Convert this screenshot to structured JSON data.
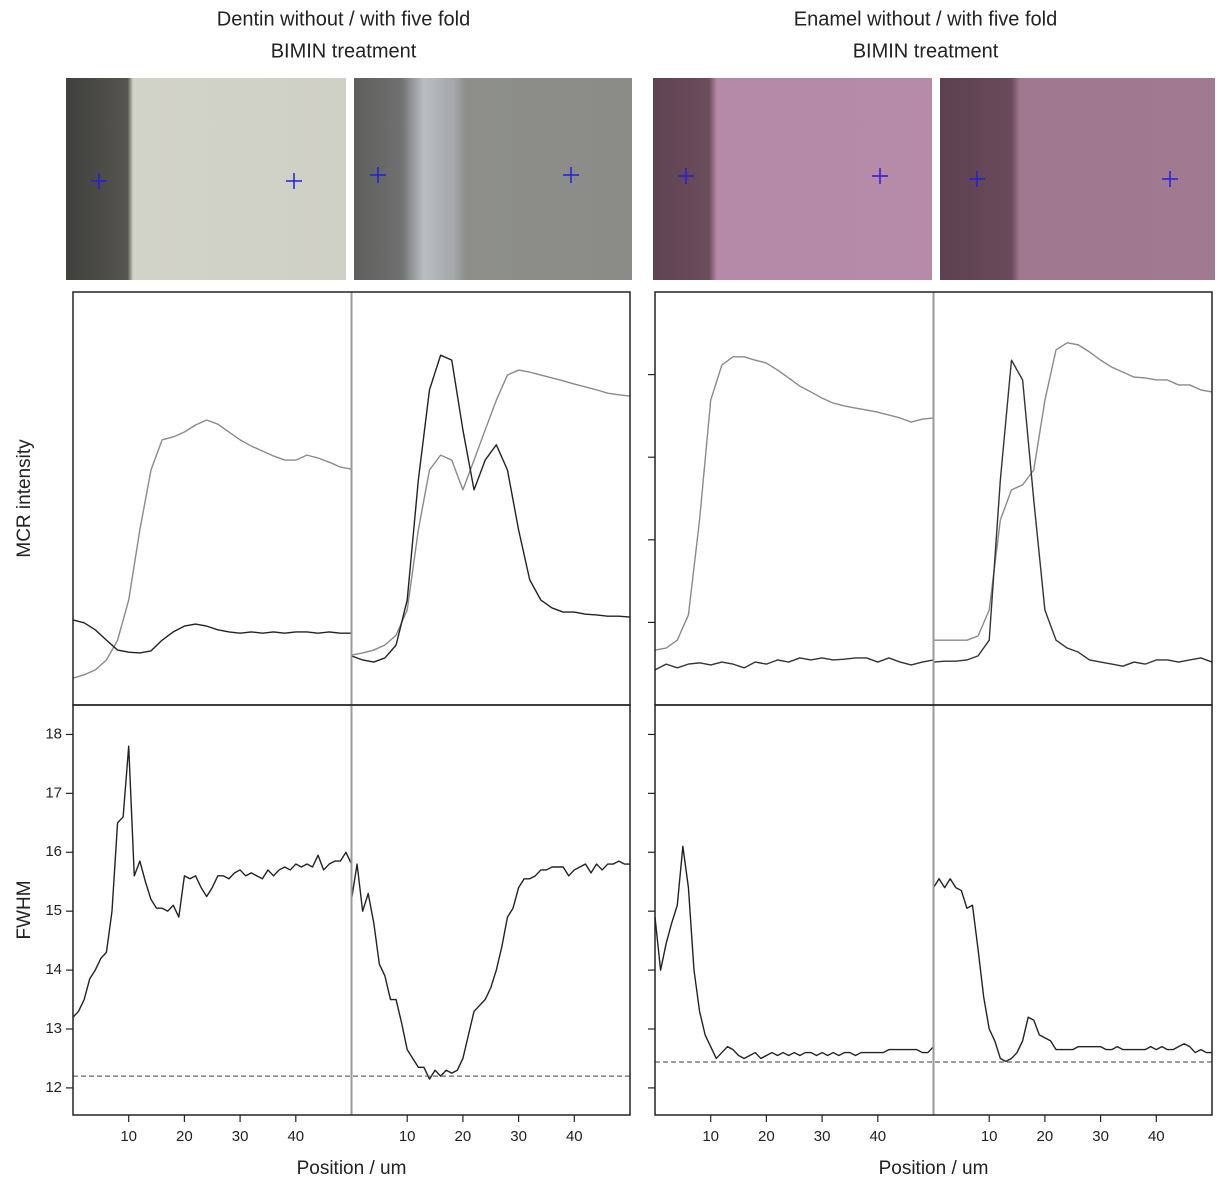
{
  "chart_data": [
    {
      "type": "line",
      "title": "Dentin without / with five fold",
      "subtitle": "BIMIN treatment",
      "ylabel": "MCR intensity",
      "ylim": [
        0,
        1
      ],
      "xlim": [
        0,
        50
      ],
      "x": [
        0,
        2,
        4,
        6,
        8,
        10,
        12,
        14,
        16,
        18,
        20,
        22,
        24,
        26,
        28,
        30,
        32,
        34,
        36,
        38,
        40,
        42,
        44,
        46,
        48,
        50
      ],
      "panels": [
        {
          "series": [
            {
              "color": "#8a8a8a",
              "values": [
                0.065,
                0.073,
                0.085,
                0.109,
                0.157,
                0.254,
                0.424,
                0.569,
                0.642,
                0.649,
                0.661,
                0.678,
                0.69,
                0.68,
                0.661,
                0.642,
                0.627,
                0.615,
                0.603,
                0.593,
                0.593,
                0.605,
                0.598,
                0.588,
                0.576,
                0.571
              ]
            },
            {
              "color": "#222222",
              "values": [
                0.206,
                0.199,
                0.182,
                0.157,
                0.133,
                0.128,
                0.126,
                0.131,
                0.157,
                0.177,
                0.191,
                0.196,
                0.191,
                0.182,
                0.177,
                0.174,
                0.177,
                0.174,
                0.177,
                0.174,
                0.177,
                0.177,
                0.174,
                0.177,
                0.174,
                0.174
              ]
            }
          ]
        },
        {
          "series": [
            {
              "color": "#8a8a8a",
              "values": [
                0.121,
                0.126,
                0.133,
                0.145,
                0.169,
                0.23,
                0.424,
                0.569,
                0.605,
                0.593,
                0.521,
                0.593,
                0.666,
                0.738,
                0.799,
                0.811,
                0.806,
                0.799,
                0.792,
                0.785,
                0.777,
                0.77,
                0.763,
                0.755,
                0.751,
                0.748
              ]
            },
            {
              "color": "#222222",
              "values": [
                0.119,
                0.109,
                0.104,
                0.114,
                0.145,
                0.254,
                0.545,
                0.763,
                0.847,
                0.835,
                0.666,
                0.521,
                0.593,
                0.63,
                0.569,
                0.424,
                0.303,
                0.254,
                0.235,
                0.225,
                0.225,
                0.22,
                0.218,
                0.215,
                0.215,
                0.213
              ]
            }
          ]
        }
      ]
    },
    {
      "type": "line",
      "ylabel": "FWHM",
      "xlabel": "Position / um",
      "ylim": [
        11.54,
        18.5
      ],
      "yticks": [
        12,
        13,
        14,
        15,
        16,
        17,
        18
      ],
      "xlim": [
        0,
        50
      ],
      "xticks": [
        10,
        20,
        30,
        40
      ],
      "reference": 12.2,
      "x": [
        0,
        1,
        2,
        3,
        4,
        5,
        6,
        7,
        8,
        9,
        10,
        11,
        12,
        13,
        14,
        15,
        16,
        17,
        18,
        19,
        20,
        21,
        22,
        23,
        24,
        25,
        26,
        27,
        28,
        29,
        30,
        31,
        32,
        33,
        34,
        35,
        36,
        37,
        38,
        39,
        40,
        41,
        42,
        43,
        44,
        45,
        46,
        47,
        48,
        49,
        50
      ],
      "panels": [
        {
          "series": [
            {
              "color": "#222222",
              "values": [
                13.2,
                13.3,
                13.5,
                13.85,
                14.0,
                14.2,
                14.3,
                15.0,
                16.5,
                16.6,
                17.8,
                15.6,
                15.85,
                15.5,
                15.2,
                15.05,
                15.05,
                15.0,
                15.1,
                14.9,
                15.6,
                15.55,
                15.6,
                15.4,
                15.25,
                15.4,
                15.6,
                15.6,
                15.55,
                15.65,
                15.7,
                15.6,
                15.65,
                15.6,
                15.55,
                15.7,
                15.6,
                15.7,
                15.75,
                15.7,
                15.8,
                15.75,
                15.8,
                15.75,
                15.95,
                15.7,
                15.8,
                15.85,
                15.85,
                16.0,
                15.8
              ]
            }
          ]
        },
        {
          "series": [
            {
              "color": "#222222",
              "values": [
                15.2,
                15.8,
                15.0,
                15.3,
                14.8,
                14.1,
                13.9,
                13.5,
                13.5,
                13.1,
                12.65,
                12.5,
                12.35,
                12.35,
                12.15,
                12.3,
                12.2,
                12.3,
                12.25,
                12.3,
                12.5,
                12.9,
                13.3,
                13.4,
                13.5,
                13.7,
                14.0,
                14.4,
                14.9,
                15.05,
                15.4,
                15.55,
                15.55,
                15.6,
                15.7,
                15.7,
                15.75,
                15.75,
                15.75,
                15.6,
                15.7,
                15.75,
                15.8,
                15.65,
                15.8,
                15.7,
                15.8,
                15.8,
                15.85,
                15.8,
                15.8
              ]
            }
          ]
        }
      ]
    },
    {
      "type": "line",
      "title": "Enamel without / with five fold",
      "subtitle": "BIMIN treatment",
      "ylim": [
        0,
        1
      ],
      "yticks": [
        0.2,
        0.4,
        0.6,
        0.8
      ],
      "ytick_labels": false,
      "xlim": [
        0,
        50
      ],
      "x": [
        0,
        2,
        4,
        6,
        8,
        10,
        12,
        14,
        16,
        18,
        20,
        22,
        24,
        26,
        28,
        30,
        32,
        34,
        36,
        38,
        40,
        42,
        44,
        46,
        48,
        50
      ],
      "panels": [
        {
          "series": [
            {
              "color": "#8a8a8a",
              "values": [
                0.133,
                0.138,
                0.157,
                0.218,
                0.448,
                0.738,
                0.823,
                0.843,
                0.843,
                0.835,
                0.828,
                0.811,
                0.792,
                0.772,
                0.758,
                0.743,
                0.731,
                0.724,
                0.719,
                0.714,
                0.709,
                0.702,
                0.695,
                0.685,
                0.692,
                0.695
              ]
            },
            {
              "color": "#333333",
              "values": [
                0.085,
                0.099,
                0.09,
                0.099,
                0.102,
                0.097,
                0.104,
                0.099,
                0.09,
                0.104,
                0.099,
                0.109,
                0.104,
                0.114,
                0.109,
                0.114,
                0.109,
                0.111,
                0.114,
                0.114,
                0.104,
                0.114,
                0.104,
                0.097,
                0.104,
                0.109
              ]
            }
          ]
        },
        {
          "series": [
            {
              "color": "#8a8a8a",
              "values": [
                0.157,
                0.157,
                0.157,
                0.157,
                0.167,
                0.23,
                0.448,
                0.521,
                0.533,
                0.569,
                0.738,
                0.86,
                0.877,
                0.872,
                0.855,
                0.835,
                0.818,
                0.806,
                0.794,
                0.792,
                0.787,
                0.787,
                0.775,
                0.775,
                0.763,
                0.758
              ]
            },
            {
              "color": "#333333",
              "values": [
                0.104,
                0.106,
                0.106,
                0.109,
                0.119,
                0.157,
                0.545,
                0.835,
                0.787,
                0.496,
                0.23,
                0.157,
                0.138,
                0.128,
                0.109,
                0.104,
                0.099,
                0.094,
                0.104,
                0.099,
                0.109,
                0.109,
                0.104,
                0.109,
                0.114,
                0.104
              ]
            }
          ]
        }
      ]
    },
    {
      "type": "line",
      "xlabel": "Position / um",
      "ylim": [
        11.54,
        18.5
      ],
      "yticks": [
        12,
        13,
        14,
        15,
        16,
        17,
        18
      ],
      "ytick_labels": false,
      "xlim": [
        0,
        50
      ],
      "xticks": [
        10,
        20,
        30,
        40
      ],
      "reference": 12.44,
      "x": [
        0,
        1,
        2,
        3,
        4,
        5,
        6,
        7,
        8,
        9,
        10,
        11,
        12,
        13,
        14,
        15,
        16,
        17,
        18,
        19,
        20,
        21,
        22,
        23,
        24,
        25,
        26,
        27,
        28,
        29,
        30,
        31,
        32,
        33,
        34,
        35,
        36,
        37,
        38,
        39,
        40,
        41,
        42,
        43,
        44,
        45,
        46,
        47,
        48,
        49,
        50
      ],
      "panels": [
        {
          "series": [
            {
              "color": "#222222",
              "values": [
                14.9,
                14.0,
                14.45,
                14.8,
                15.1,
                16.1,
                15.4,
                14.0,
                13.3,
                12.9,
                12.7,
                12.5,
                12.6,
                12.7,
                12.65,
                12.55,
                12.5,
                12.55,
                12.6,
                12.5,
                12.55,
                12.6,
                12.55,
                12.6,
                12.55,
                12.6,
                12.55,
                12.6,
                12.6,
                12.55,
                12.6,
                12.55,
                12.6,
                12.55,
                12.6,
                12.6,
                12.55,
                12.6,
                12.6,
                12.6,
                12.6,
                12.6,
                12.65,
                12.65,
                12.65,
                12.65,
                12.65,
                12.65,
                12.6,
                12.6,
                12.7
              ]
            }
          ]
        },
        {
          "series": [
            {
              "color": "#222222",
              "values": [
                15.4,
                15.55,
                15.4,
                15.55,
                15.4,
                15.35,
                15.05,
                15.1,
                14.35,
                13.55,
                13.0,
                12.8,
                12.5,
                12.45,
                12.5,
                12.6,
                12.8,
                13.2,
                13.15,
                12.9,
                12.85,
                12.8,
                12.65,
                12.65,
                12.65,
                12.65,
                12.7,
                12.7,
                12.7,
                12.7,
                12.7,
                12.65,
                12.65,
                12.7,
                12.65,
                12.65,
                12.65,
                12.65,
                12.65,
                12.7,
                12.65,
                12.7,
                12.65,
                12.65,
                12.7,
                12.75,
                12.7,
                12.6,
                12.65,
                12.6,
                12.6
              ]
            }
          ]
        }
      ]
    }
  ]
}
